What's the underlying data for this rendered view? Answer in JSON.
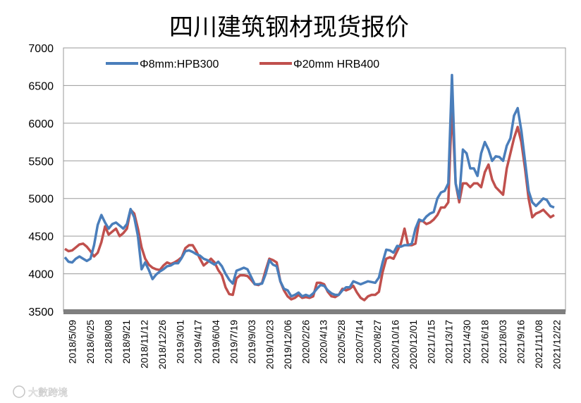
{
  "chart_data": {
    "type": "line",
    "title": "四川建筑钢材现货报价",
    "xlabel": "",
    "ylabel": "",
    "ylim": [
      3500,
      7000
    ],
    "yticks": [
      3500,
      4000,
      4500,
      5000,
      5500,
      6000,
      6500,
      7000
    ],
    "grid": "horizontal",
    "legend_position": "top-left",
    "x_tick_labels": [
      "2018/5/09",
      "2018/6/25",
      "2018/8/08",
      "2018/9/21",
      "2018/11/12",
      "2018/12/26",
      "2019/3/01",
      "2019/4/17",
      "2019/6/04",
      "2019/7/19",
      "2019/9/03",
      "2019/10/23",
      "2019/12/06",
      "2020/2/26",
      "2020/4/13",
      "2020/5/28",
      "2020/7/14",
      "2020/8/27",
      "2020/10/16",
      "2020/12/01",
      "2021/1/15",
      "2021/3/17",
      "2021/4/30",
      "2021/6/18",
      "2021/8/03",
      "2021/9/16",
      "2021/11/08",
      "2021/12/22"
    ],
    "series": [
      {
        "name": "Φ8mm:HPB300",
        "color": "#4a7ebb",
        "values": [
          4220,
          4160,
          4150,
          4200,
          4230,
          4200,
          4170,
          4200,
          4380,
          4650,
          4780,
          4680,
          4600,
          4660,
          4680,
          4640,
          4600,
          4660,
          4860,
          4750,
          4500,
          4060,
          4150,
          4050,
          3930,
          3990,
          4030,
          4060,
          4100,
          4110,
          4140,
          4140,
          4210,
          4300,
          4310,
          4290,
          4260,
          4240,
          4200,
          4180,
          4150,
          4120,
          4160,
          4100,
          4000,
          3920,
          3870,
          4040,
          4060,
          4080,
          4060,
          3960,
          3860,
          3860,
          3870,
          4000,
          4180,
          4120,
          4100,
          3900,
          3800,
          3780,
          3700,
          3720,
          3750,
          3700,
          3720,
          3700,
          3740,
          3800,
          3850,
          3840,
          3780,
          3740,
          3720,
          3720,
          3780,
          3820,
          3820,
          3900,
          3880,
          3860,
          3880,
          3900,
          3890,
          3880,
          3950,
          4150,
          4320,
          4310,
          4280,
          4370,
          4360,
          4380,
          4380,
          4400,
          4600,
          4720,
          4700,
          4760,
          4800,
          4820,
          5000,
          5080,
          5100,
          5200,
          6640,
          5200,
          5000,
          5650,
          5600,
          5400,
          5400,
          5300,
          5600,
          5750,
          5650,
          5500,
          5560,
          5550,
          5500,
          5700,
          5800,
          6100,
          6200,
          5900,
          5500,
          5100,
          4950,
          4900,
          4950,
          5000,
          4980,
          4900,
          4880
        ],
        "x_start": 0,
        "x_end": 136
      },
      {
        "name": "Φ20mm HRB400",
        "color": "#c0504d",
        "values": [
          4330,
          4300,
          4310,
          4350,
          4390,
          4400,
          4360,
          4300,
          4230,
          4280,
          4420,
          4630,
          4520,
          4560,
          4600,
          4500,
          4540,
          4600,
          4850,
          4800,
          4600,
          4350,
          4200,
          4120,
          4080,
          4060,
          4050,
          4110,
          4150,
          4130,
          4150,
          4180,
          4220,
          4340,
          4380,
          4380,
          4300,
          4200,
          4110,
          4150,
          4200,
          4150,
          4050,
          3980,
          3820,
          3730,
          3720,
          3940,
          3980,
          3980,
          3970,
          3920,
          3860,
          3850,
          3880,
          4050,
          4200,
          4180,
          4150,
          3900,
          3780,
          3700,
          3660,
          3680,
          3720,
          3680,
          3690,
          3680,
          3700,
          3880,
          3880,
          3860,
          3760,
          3700,
          3690,
          3720,
          3800,
          3780,
          3800,
          3840,
          3750,
          3680,
          3650,
          3700,
          3720,
          3720,
          3760,
          4020,
          4200,
          4220,
          4200,
          4300,
          4400,
          4600,
          4380,
          4380,
          4400,
          4700,
          4700,
          4660,
          4680,
          4720,
          4780,
          4880,
          4880,
          4950,
          6250,
          5200,
          4950,
          5200,
          5200,
          5150,
          5200,
          5200,
          5150,
          5350,
          5450,
          5250,
          5150,
          5100,
          5050,
          5400,
          5600,
          5800,
          5950,
          5750,
          5400,
          5000,
          4750,
          4800,
          4820,
          4850,
          4800,
          4750,
          4780
        ],
        "x_start": 0,
        "x_end": 136
      }
    ]
  },
  "watermark": "大數跨境"
}
